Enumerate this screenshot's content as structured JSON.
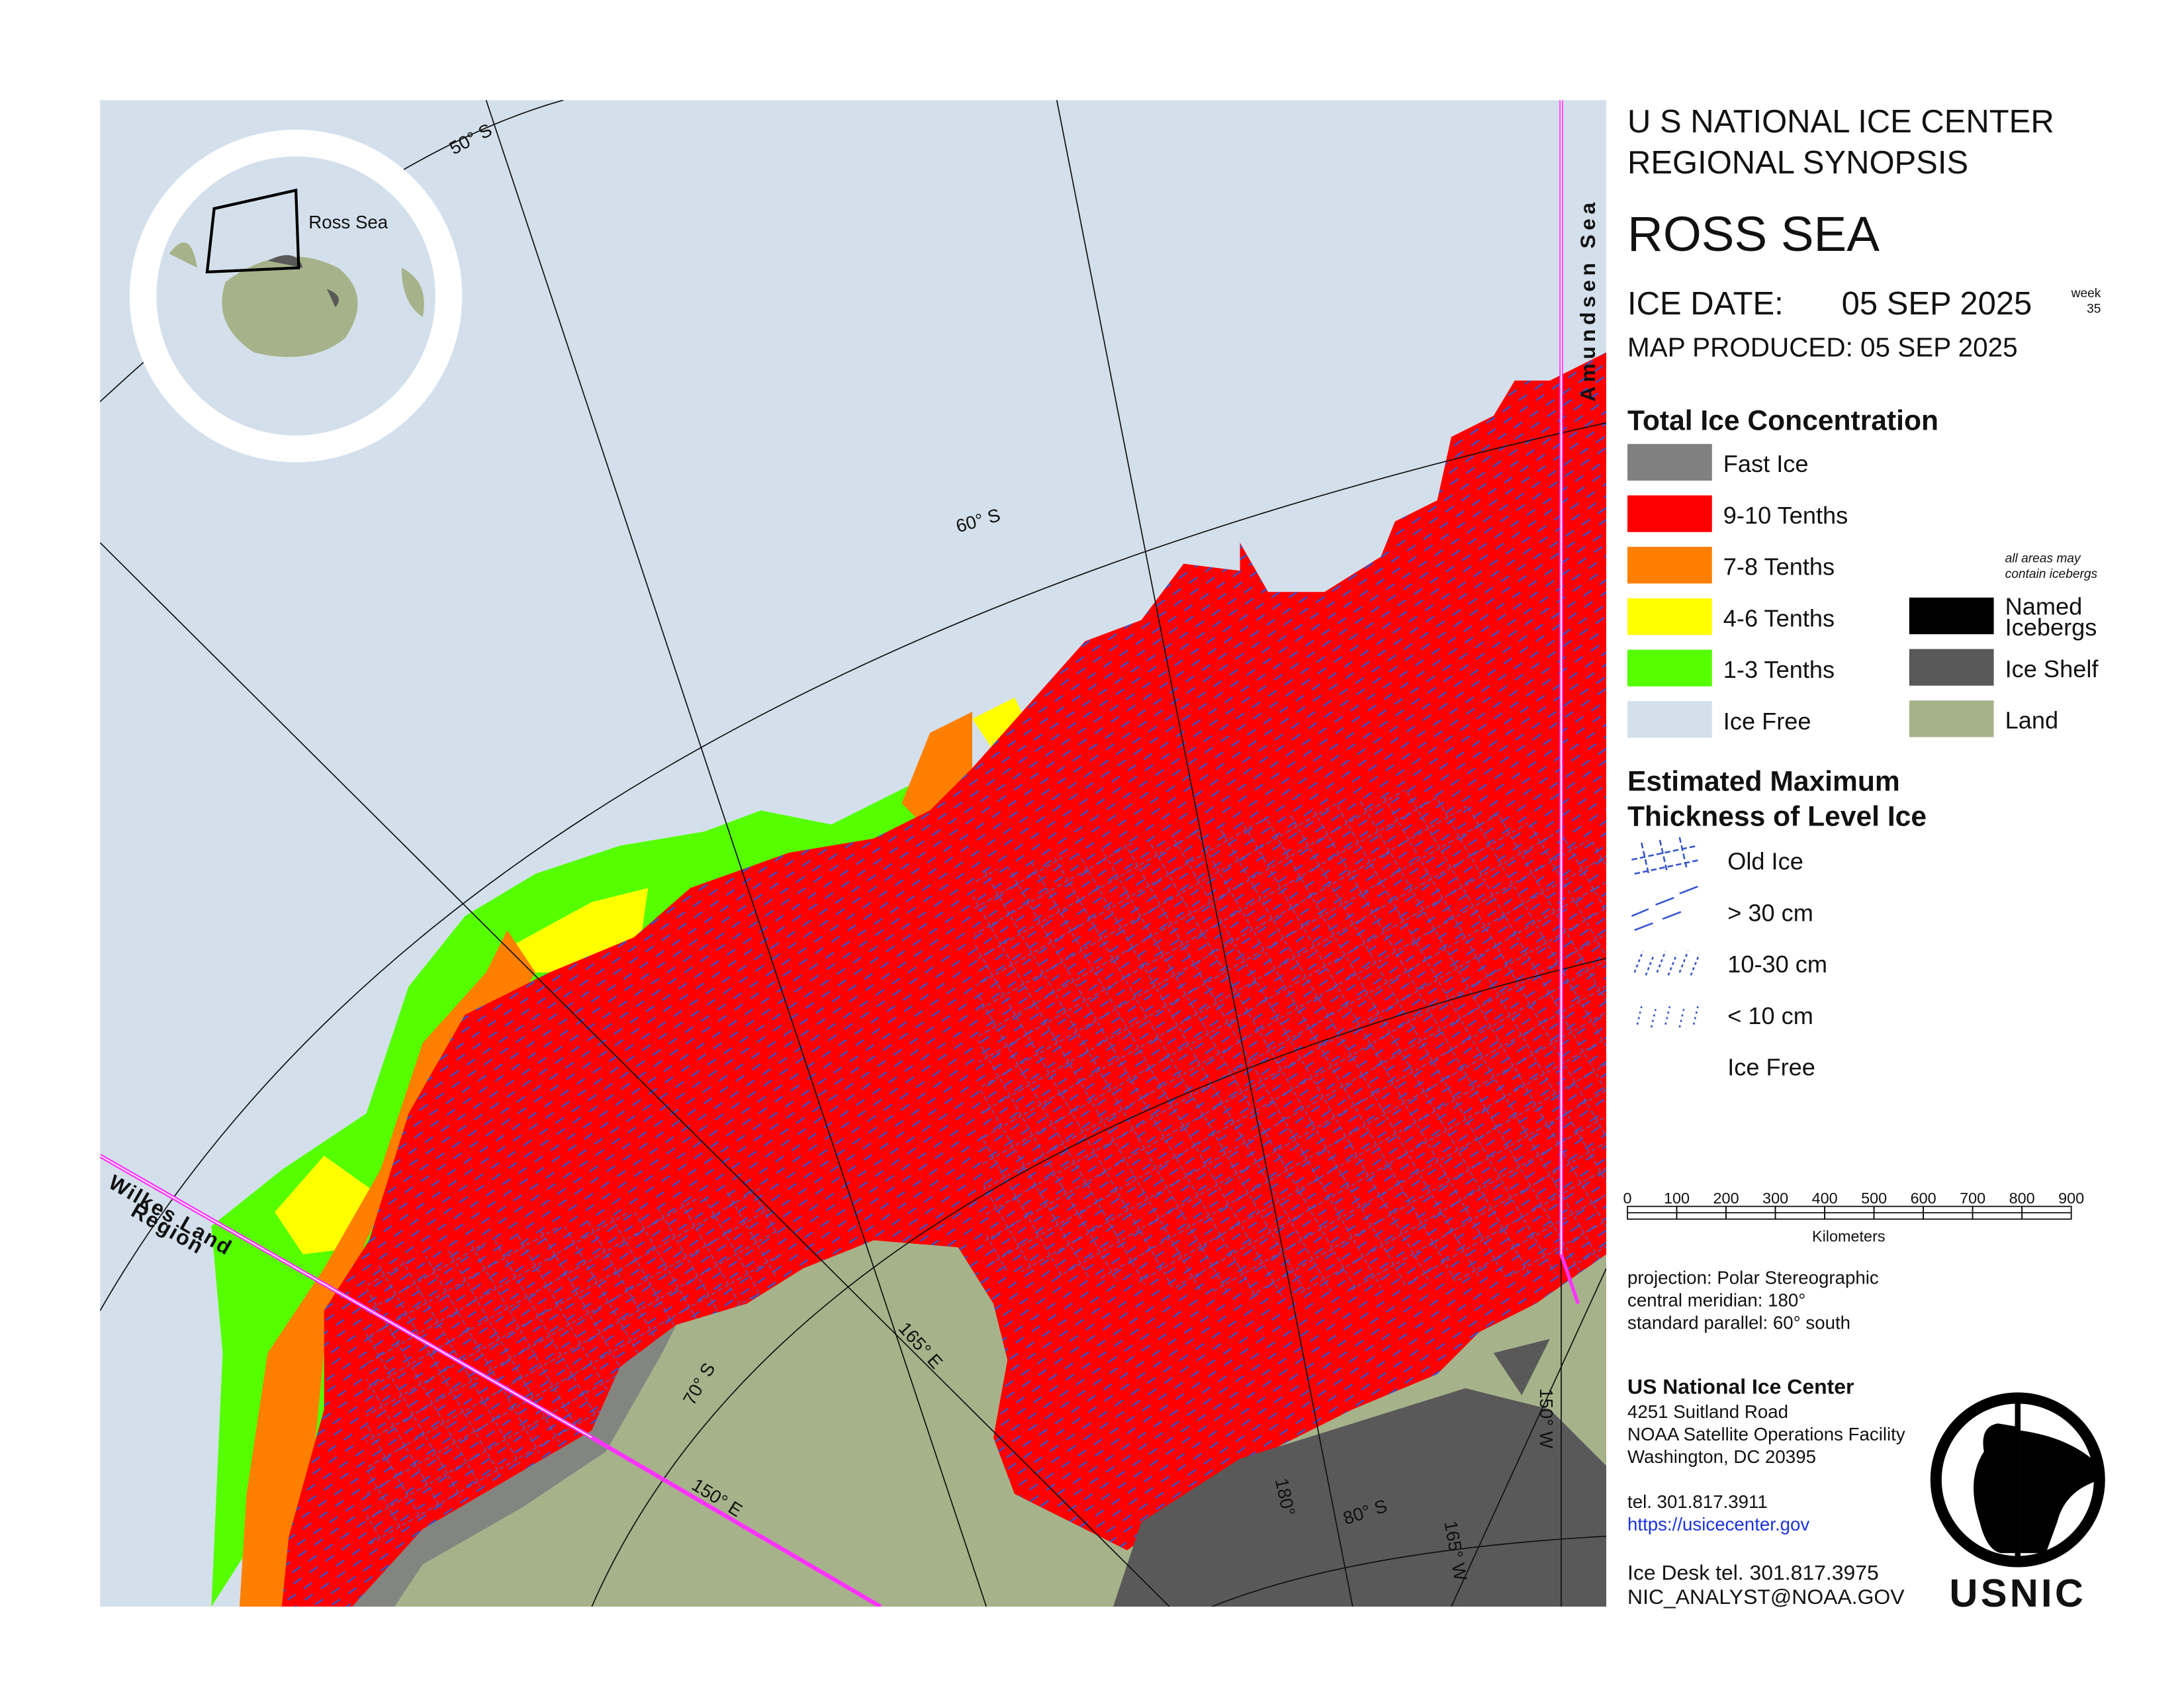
{
  "header": {
    "line1": "U S NATIONAL ICE CENTER",
    "line2": "REGIONAL SYNOPSIS",
    "region": "ROSS SEA",
    "ice_date_label": "ICE DATE:",
    "ice_date": "05 SEP 2025",
    "week_label": "week",
    "week": "35",
    "map_produced": "MAP PRODUCED:  05 SEP 2025"
  },
  "concentration": {
    "title": "Total Ice Concentration",
    "items": [
      {
        "label": "Fast Ice",
        "color": "#808080"
      },
      {
        "label": "9-10 Tenths",
        "color": "#ff0000"
      },
      {
        "label": "7-8 Tenths",
        "color": "#ff7f00"
      },
      {
        "label": "4-6 Tenths",
        "color": "#ffff00"
      },
      {
        "label": "1-3 Tenths",
        "color": "#55ff00"
      },
      {
        "label": "Ice Free",
        "color": "#d3e0ec"
      }
    ],
    "note": [
      "all areas may",
      "contain icebergs"
    ],
    "extra": [
      {
        "label": [
          "Named",
          "Icebergs"
        ],
        "color": "#000000"
      },
      {
        "label": [
          "Ice Shelf"
        ],
        "color": "#595959"
      },
      {
        "label": [
          "Land"
        ],
        "color": "#a6b38a"
      }
    ]
  },
  "thickness": {
    "title": [
      "Estimated Maximum",
      "Thickness of Level Ice"
    ],
    "items": [
      "Old Ice",
      "> 30 cm",
      "10-30 cm",
      "< 10 cm",
      "Ice Free"
    ]
  },
  "scale_bar": {
    "ticks": [
      "0",
      "100",
      "200",
      "300",
      "400",
      "500",
      "600",
      "700",
      "800",
      "900"
    ],
    "unit": "Kilometers"
  },
  "projection": [
    "projection: Polar Stereographic",
    "central meridian: 180°",
    "standard parallel:  60° south"
  ],
  "contact": {
    "org": "US National Ice Center",
    "address": [
      "4251 Suitland Road",
      "NOAA Satellite Operations Facility",
      "Washington, DC  20395"
    ],
    "tel": "tel. 301.817.3911",
    "url": "https://usicecenter.gov",
    "ice_desk": "Ice Desk tel. 301.817.3975",
    "email": "NIC_ANALYST@NOAA.GOV",
    "logo": "USNIC"
  },
  "map_labels": {
    "lat50": "50° S",
    "lat60": "60° S",
    "lat70": "70° S",
    "lat80": "80° S",
    "lon165e": "165° E",
    "lon150e": "150° E",
    "lon180": "180°",
    "lon165w": "165° W",
    "lon150w": "150° W",
    "amundsen": "Amundsen  Sea",
    "wilkes": [
      "Wilkes  Land",
      "Region"
    ],
    "inset": "Ross Sea"
  }
}
